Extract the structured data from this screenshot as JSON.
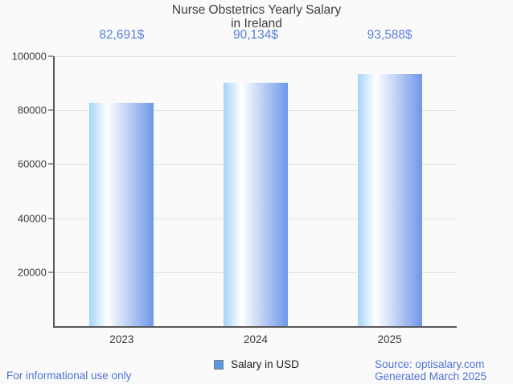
{
  "title": {
    "line1": "Nurse Obstetrics Yearly Salary",
    "line2": "in Ireland"
  },
  "chart_data": {
    "type": "bar",
    "categories": [
      "2023",
      "2024",
      "2025"
    ],
    "series": [
      {
        "name": "Salary in USD",
        "values": [
          82691,
          90134,
          93588
        ]
      }
    ],
    "value_labels": [
      "82,691$",
      "90,134$",
      "93,588$"
    ],
    "title": "Nurse Obstetrics Yearly Salary in Ireland",
    "xlabel": "",
    "ylabel": "",
    "ylim": [
      0,
      100000
    ],
    "yticks": [
      20000,
      40000,
      60000,
      80000,
      100000
    ],
    "ytick_labels": [
      "20000",
      "40000",
      "60000",
      "80000",
      "100000"
    ],
    "grid": true,
    "legend_position": "bottom"
  },
  "legend": {
    "label": "Salary in USD"
  },
  "footer": {
    "left": "For informational use only",
    "source": "Source: optisalary.com",
    "generated": "Generated March 2025"
  },
  "colors": {
    "background": "#fafafa",
    "title_text": "#3d3d3d",
    "axis_line": "#595959",
    "gridline": "#e1e1e1",
    "tick": "#9a9a9a",
    "axis_label_text": "#3d3d3d",
    "value_label_blue": "#5b80d9",
    "footer_blue": "#4e73d5",
    "bar_gradient_left": "#a6d4f7",
    "bar_gradient_mid": "#ffffff",
    "bar_gradient_right": "#6e97e9",
    "legend_swatch": "#5598e5",
    "legend_swatch_border": "#7c7c7c"
  }
}
